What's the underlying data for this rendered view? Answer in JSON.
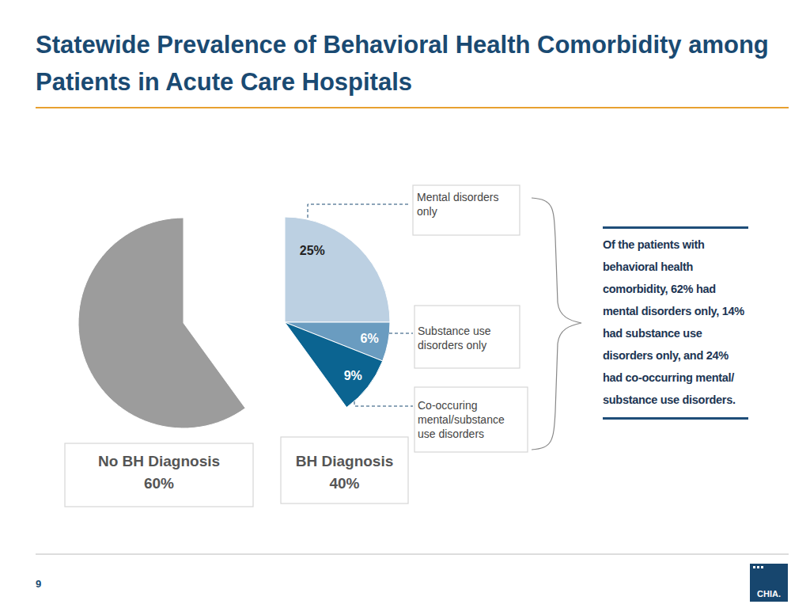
{
  "chart_data": {
    "type": "pie",
    "title": "Statewide Prevalence of Behavioral Health Comorbidity among Patients in Acute Care Hospitals",
    "categories": [
      "Mental disorders only",
      "Substance use disorders only",
      "Co-occuring mental/substance use disorders",
      "No BH Diagnosis"
    ],
    "values": [
      25,
      6,
      9,
      60
    ],
    "value_labels": [
      "25%",
      "6%",
      "9%",
      "60%"
    ],
    "colors": [
      "#bcd0e2",
      "#6a9cc0",
      "#0b6491",
      "#9c9c9c"
    ],
    "data_labels": true,
    "group": {
      "name": "BH Diagnosis",
      "value": 40,
      "value_label": "40%"
    },
    "annotation": "Of the patients with behavioral health comorbidity, 62% had mental disorders only, 14% had substance use disorders only, and 24% had co-occurring mental/ substance use disorders."
  },
  "page_number": "9",
  "logo": "CHIA."
}
